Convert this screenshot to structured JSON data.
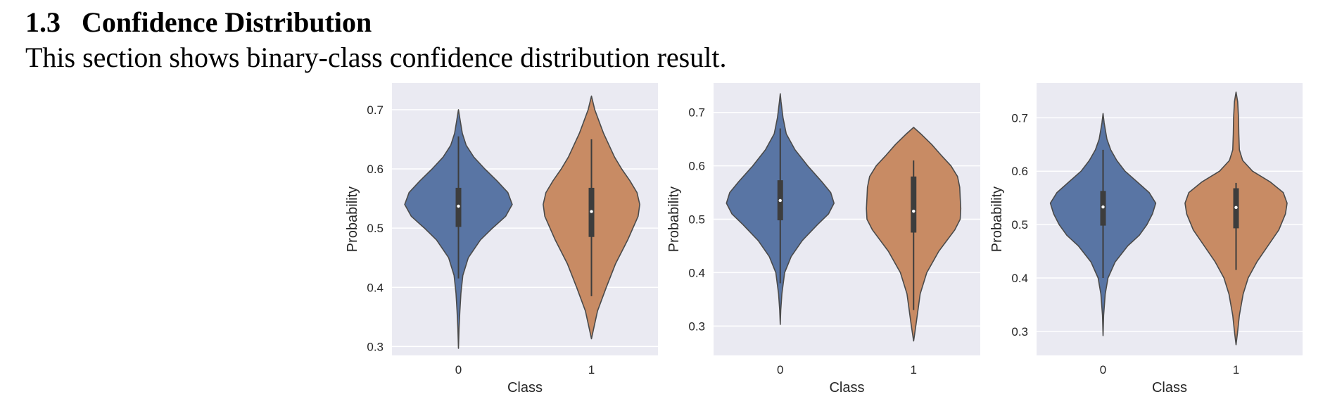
{
  "section": {
    "number": "1.3",
    "title": "Confidence Distribution",
    "intro": "This section shows binary-class confidence distribution result."
  },
  "chart_data": [
    {
      "type": "violin",
      "xlabel": "Class",
      "ylabel": "Probability",
      "categories": [
        "0",
        "1"
      ],
      "ylim": [
        0.285,
        0.745
      ],
      "yticks": [
        0.3,
        0.4,
        0.5,
        0.6,
        0.7
      ],
      "grid": true,
      "colors": [
        "#5975a4",
        "#c88b64"
      ],
      "violins": [
        {
          "category": "0",
          "min": 0.297,
          "max": 0.7,
          "q1": 0.502,
          "median": 0.537,
          "q3": 0.568,
          "whisker_low": 0.415,
          "whisker_high": 0.655,
          "density": [
            [
              0.297,
              0.0
            ],
            [
              0.33,
              0.01
            ],
            [
              0.36,
              0.025
            ],
            [
              0.39,
              0.045
            ],
            [
              0.42,
              0.08
            ],
            [
              0.45,
              0.18
            ],
            [
              0.48,
              0.4
            ],
            [
              0.5,
              0.62
            ],
            [
              0.52,
              0.86
            ],
            [
              0.54,
              0.98
            ],
            [
              0.56,
              0.9
            ],
            [
              0.58,
              0.7
            ],
            [
              0.6,
              0.48
            ],
            [
              0.62,
              0.28
            ],
            [
              0.64,
              0.14
            ],
            [
              0.66,
              0.07
            ],
            [
              0.68,
              0.035
            ],
            [
              0.7,
              0.0
            ]
          ]
        },
        {
          "category": "1",
          "min": 0.313,
          "max": 0.723,
          "q1": 0.485,
          "median": 0.528,
          "q3": 0.568,
          "whisker_low": 0.385,
          "whisker_high": 0.65,
          "density": [
            [
              0.313,
              0.0
            ],
            [
              0.33,
              0.04
            ],
            [
              0.36,
              0.11
            ],
            [
              0.4,
              0.27
            ],
            [
              0.44,
              0.44
            ],
            [
              0.48,
              0.66
            ],
            [
              0.52,
              0.85
            ],
            [
              0.54,
              0.88
            ],
            [
              0.56,
              0.83
            ],
            [
              0.58,
              0.7
            ],
            [
              0.6,
              0.55
            ],
            [
              0.62,
              0.42
            ],
            [
              0.64,
              0.32
            ],
            [
              0.66,
              0.22
            ],
            [
              0.68,
              0.14
            ],
            [
              0.7,
              0.06
            ],
            [
              0.723,
              0.0
            ]
          ]
        }
      ]
    },
    {
      "type": "violin",
      "xlabel": "Class",
      "ylabel": "Probability",
      "categories": [
        "0",
        "1"
      ],
      "ylim": [
        0.245,
        0.755
      ],
      "yticks": [
        0.3,
        0.4,
        0.5,
        0.6,
        0.7
      ],
      "grid": true,
      "colors": [
        "#5975a4",
        "#c88b64"
      ],
      "violins": [
        {
          "category": "0",
          "min": 0.303,
          "max": 0.735,
          "q1": 0.498,
          "median": 0.535,
          "q3": 0.573,
          "whisker_low": 0.38,
          "whisker_high": 0.67,
          "density": [
            [
              0.303,
              0.0
            ],
            [
              0.33,
              0.01
            ],
            [
              0.36,
              0.03
            ],
            [
              0.4,
              0.08
            ],
            [
              0.43,
              0.2
            ],
            [
              0.46,
              0.4
            ],
            [
              0.49,
              0.68
            ],
            [
              0.51,
              0.88
            ],
            [
              0.53,
              0.98
            ],
            [
              0.55,
              0.92
            ],
            [
              0.57,
              0.76
            ],
            [
              0.6,
              0.5
            ],
            [
              0.63,
              0.27
            ],
            [
              0.66,
              0.11
            ],
            [
              0.69,
              0.05
            ],
            [
              0.72,
              0.015
            ],
            [
              0.735,
              0.0
            ]
          ]
        },
        {
          "category": "1",
          "min": 0.272,
          "max": 0.672,
          "q1": 0.475,
          "median": 0.515,
          "q3": 0.58,
          "whisker_low": 0.33,
          "whisker_high": 0.61,
          "density": [
            [
              0.272,
              0.0
            ],
            [
              0.3,
              0.04
            ],
            [
              0.33,
              0.08
            ],
            [
              0.36,
              0.12
            ],
            [
              0.4,
              0.24
            ],
            [
              0.44,
              0.46
            ],
            [
              0.48,
              0.75
            ],
            [
              0.5,
              0.85
            ],
            [
              0.52,
              0.86
            ],
            [
              0.54,
              0.85
            ],
            [
              0.56,
              0.84
            ],
            [
              0.58,
              0.8
            ],
            [
              0.6,
              0.68
            ],
            [
              0.62,
              0.5
            ],
            [
              0.64,
              0.33
            ],
            [
              0.66,
              0.13
            ],
            [
              0.672,
              0.0
            ]
          ]
        }
      ]
    },
    {
      "type": "violin",
      "xlabel": "Class",
      "ylabel": "Probability",
      "categories": [
        "0",
        "1"
      ],
      "ylim": [
        0.255,
        0.765
      ],
      "yticks": [
        0.3,
        0.4,
        0.5,
        0.6,
        0.7
      ],
      "grid": true,
      "colors": [
        "#5975a4",
        "#c88b64"
      ],
      "violins": [
        {
          "category": "0",
          "min": 0.292,
          "max": 0.708,
          "q1": 0.498,
          "median": 0.533,
          "q3": 0.563,
          "whisker_low": 0.4,
          "whisker_high": 0.64,
          "density": [
            [
              0.292,
              0.0
            ],
            [
              0.33,
              0.01
            ],
            [
              0.37,
              0.04
            ],
            [
              0.4,
              0.09
            ],
            [
              0.43,
              0.22
            ],
            [
              0.46,
              0.45
            ],
            [
              0.48,
              0.66
            ],
            [
              0.5,
              0.8
            ],
            [
              0.52,
              0.9
            ],
            [
              0.54,
              0.96
            ],
            [
              0.56,
              0.84
            ],
            [
              0.58,
              0.62
            ],
            [
              0.6,
              0.4
            ],
            [
              0.62,
              0.25
            ],
            [
              0.64,
              0.14
            ],
            [
              0.66,
              0.07
            ],
            [
              0.69,
              0.02
            ],
            [
              0.708,
              0.0
            ]
          ]
        },
        {
          "category": "1",
          "min": 0.275,
          "max": 0.748,
          "q1": 0.493,
          "median": 0.532,
          "q3": 0.568,
          "whisker_low": 0.415,
          "whisker_high": 0.578,
          "density": [
            [
              0.275,
              0.0
            ],
            [
              0.3,
              0.03
            ],
            [
              0.33,
              0.06
            ],
            [
              0.37,
              0.13
            ],
            [
              0.4,
              0.22
            ],
            [
              0.43,
              0.38
            ],
            [
              0.46,
              0.58
            ],
            [
              0.49,
              0.78
            ],
            [
              0.52,
              0.9
            ],
            [
              0.54,
              0.93
            ],
            [
              0.56,
              0.86
            ],
            [
              0.58,
              0.62
            ],
            [
              0.6,
              0.3
            ],
            [
              0.62,
              0.12
            ],
            [
              0.64,
              0.06
            ],
            [
              0.67,
              0.05
            ],
            [
              0.7,
              0.045
            ],
            [
              0.73,
              0.03
            ],
            [
              0.748,
              0.0
            ]
          ]
        }
      ]
    }
  ]
}
